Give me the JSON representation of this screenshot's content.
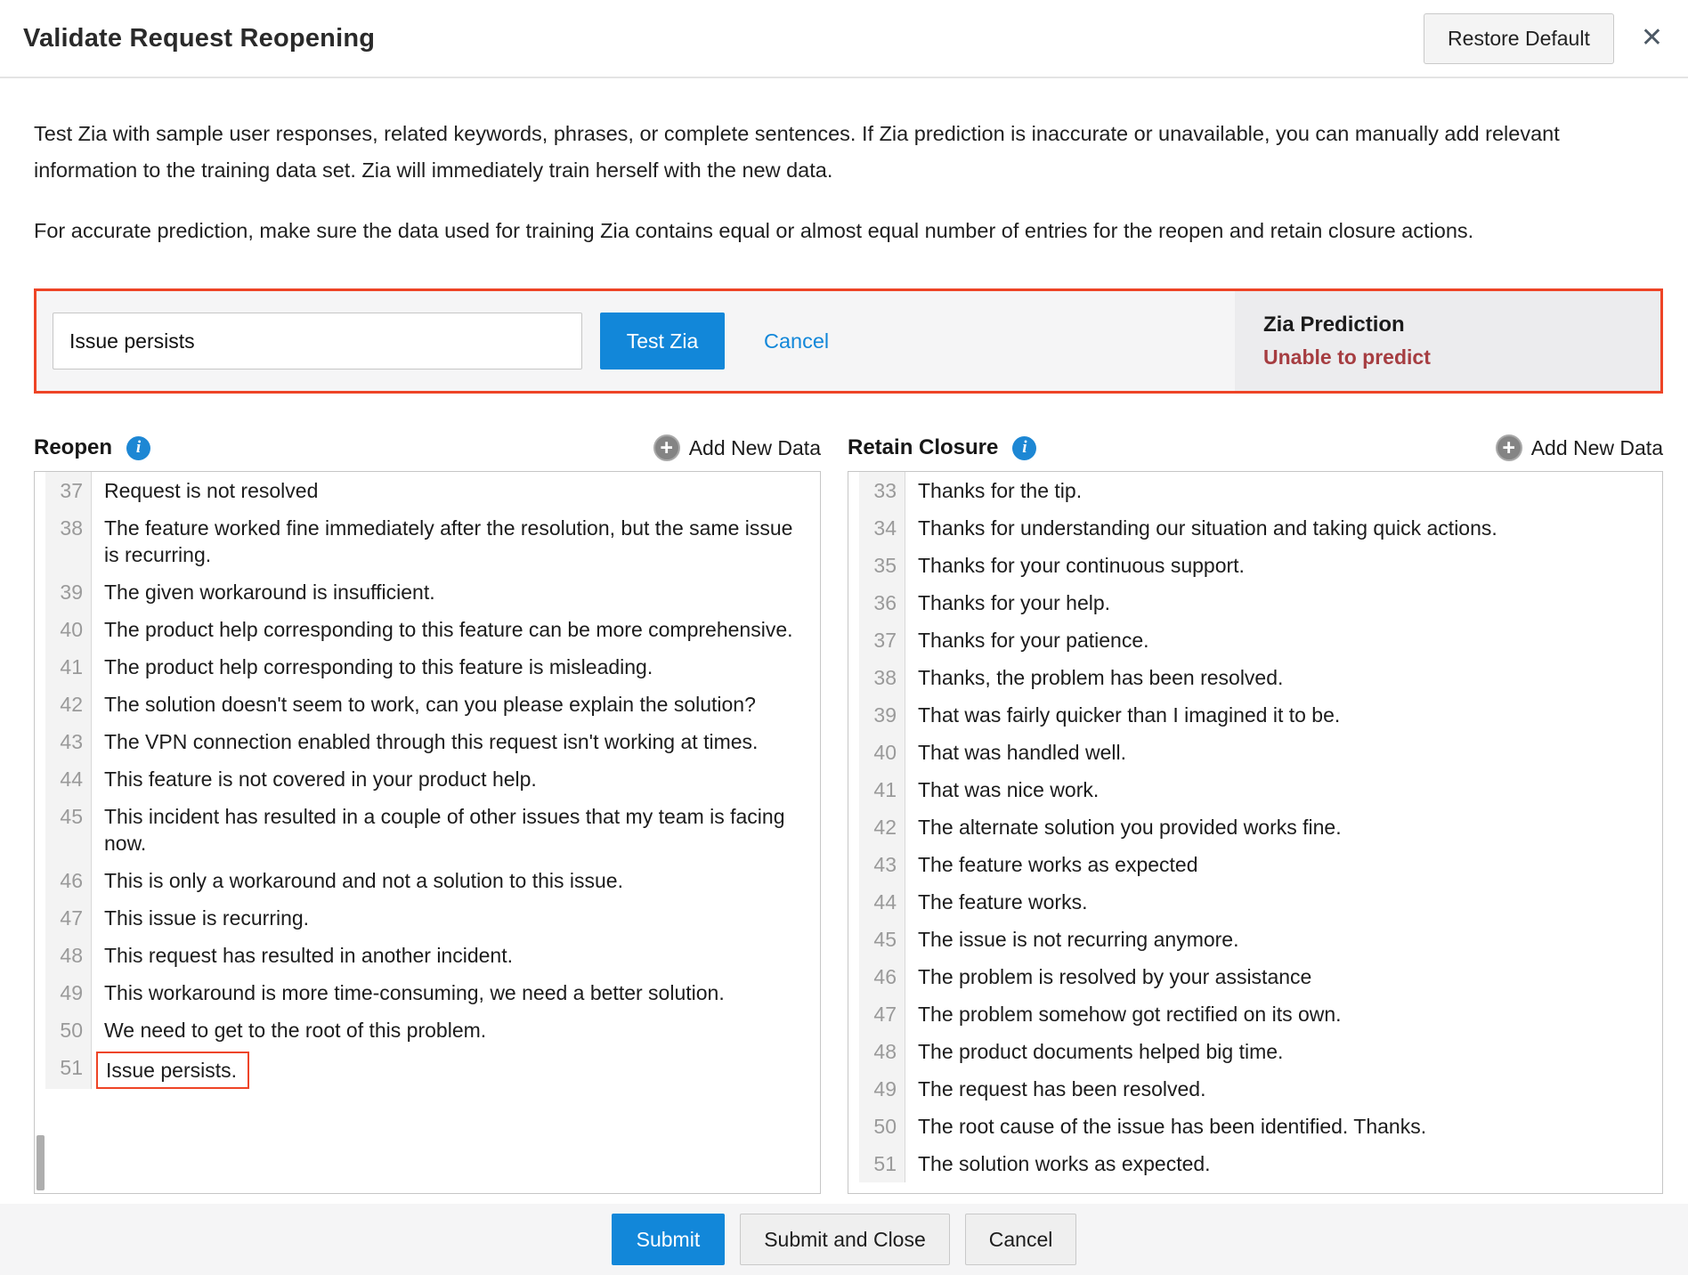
{
  "header": {
    "title": "Validate Request Reopening",
    "restore_default_label": "Restore Default",
    "close_icon": "✕"
  },
  "intro": {
    "paragraph1": "Test Zia with sample user responses, related keywords, phrases, or complete sentences. If Zia prediction is inaccurate or unavailable, you can manually add relevant information to the training data set. Zia will immediately train herself with the new data.",
    "paragraph2": "For accurate prediction, make sure the data used for training Zia contains equal or almost equal number of entries for the reopen and retain closure actions."
  },
  "test_bar": {
    "input_value": "Issue persists",
    "test_button_label": "Test Zia",
    "cancel_label": "Cancel",
    "prediction_title": "Zia Prediction",
    "prediction_result": "Unable to predict"
  },
  "columns": {
    "reopen": {
      "title": "Reopen",
      "info_icon": "i",
      "add_label": "Add New Data",
      "plus_icon": "+",
      "items": [
        {
          "num": 37,
          "text": "Request is not resolved",
          "highlighted": false
        },
        {
          "num": 38,
          "text": "The feature worked fine immediately after the resolution, but the same issue is recurring.",
          "highlighted": false
        },
        {
          "num": 39,
          "text": "The given workaround is insufficient.",
          "highlighted": false
        },
        {
          "num": 40,
          "text": "The product help corresponding to this feature can be more comprehensive.",
          "highlighted": false
        },
        {
          "num": 41,
          "text": "The product help corresponding to this feature is misleading.",
          "highlighted": false
        },
        {
          "num": 42,
          "text": "The solution doesn't seem to work, can you please explain the solution?",
          "highlighted": false
        },
        {
          "num": 43,
          "text": "The VPN connection enabled through this request isn't working at times.",
          "highlighted": false
        },
        {
          "num": 44,
          "text": "This feature is not covered in your product help.",
          "highlighted": false
        },
        {
          "num": 45,
          "text": "This incident has resulted in a couple of other issues that my team is facing now.",
          "highlighted": false
        },
        {
          "num": 46,
          "text": "This is only a workaround and not a solution to this issue.",
          "highlighted": false
        },
        {
          "num": 47,
          "text": "This issue is recurring.",
          "highlighted": false
        },
        {
          "num": 48,
          "text": "This request has resulted in another incident.",
          "highlighted": false
        },
        {
          "num": 49,
          "text": "This workaround is more time-consuming, we need a better solution.",
          "highlighted": false
        },
        {
          "num": 50,
          "text": "We need to get to the root of this problem.",
          "highlighted": false
        },
        {
          "num": 51,
          "text": "Issue persists.",
          "highlighted": true
        }
      ]
    },
    "retain": {
      "title": "Retain Closure",
      "info_icon": "i",
      "add_label": "Add New Data",
      "plus_icon": "+",
      "items": [
        {
          "num": 33,
          "text": "Thanks for the tip.",
          "highlighted": false
        },
        {
          "num": 34,
          "text": "Thanks for understanding our situation and taking quick actions.",
          "highlighted": false
        },
        {
          "num": 35,
          "text": "Thanks for your continuous support.",
          "highlighted": false
        },
        {
          "num": 36,
          "text": "Thanks for your help.",
          "highlighted": false
        },
        {
          "num": 37,
          "text": "Thanks for your patience.",
          "highlighted": false
        },
        {
          "num": 38,
          "text": "Thanks, the problem has been resolved.",
          "highlighted": false
        },
        {
          "num": 39,
          "text": "That was fairly quicker than I imagined it to be.",
          "highlighted": false
        },
        {
          "num": 40,
          "text": "That was handled well.",
          "highlighted": false
        },
        {
          "num": 41,
          "text": "That was nice work.",
          "highlighted": false
        },
        {
          "num": 42,
          "text": "The alternate solution you provided works fine.",
          "highlighted": false
        },
        {
          "num": 43,
          "text": "The feature works as expected",
          "highlighted": false
        },
        {
          "num": 44,
          "text": "The feature works.",
          "highlighted": false
        },
        {
          "num": 45,
          "text": "The issue is not recurring anymore.",
          "highlighted": false
        },
        {
          "num": 46,
          "text": "The problem is resolved by your assistance",
          "highlighted": false
        },
        {
          "num": 47,
          "text": "The problem somehow got rectified on its own.",
          "highlighted": false
        },
        {
          "num": 48,
          "text": "The product documents helped big time.",
          "highlighted": false
        },
        {
          "num": 49,
          "text": "The request has been resolved.",
          "highlighted": false
        },
        {
          "num": 50,
          "text": "The root cause of the issue has been identified. Thanks.",
          "highlighted": false
        },
        {
          "num": 51,
          "text": "The solution works as expected.",
          "highlighted": false
        }
      ]
    }
  },
  "footer": {
    "submit_label": "Submit",
    "submit_close_label": "Submit and Close",
    "cancel_label": "Cancel"
  },
  "colors": {
    "accent_red": "#ee4426",
    "prediction_dark_red": "#a63d41",
    "primary_blue": "#1287d9",
    "info_icon_blue": "#1d87d4"
  }
}
